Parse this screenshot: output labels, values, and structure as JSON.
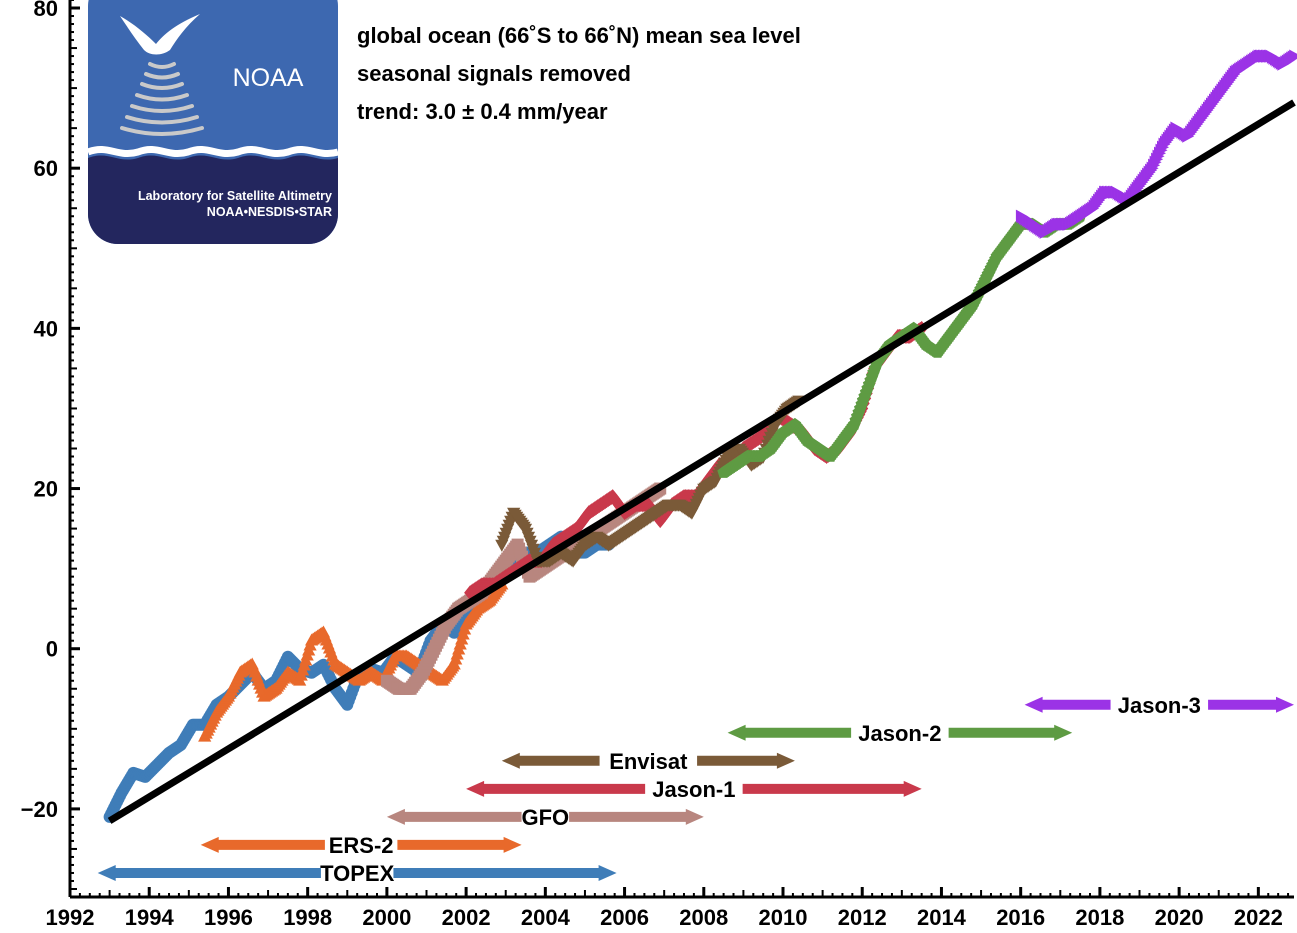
{
  "chart_data": {
    "type": "scatter",
    "title_lines": [
      "global ocean (66˚S to 66˚N) mean sea level",
      "seasonal signals removed",
      "trend:  3.0 ± 0.4 mm/year"
    ],
    "xlabel": "",
    "ylabel": "",
    "xlim": [
      1992,
      2022.9
    ],
    "ylim": [
      -31,
      81
    ],
    "x_ticks": [
      1992,
      1994,
      1996,
      1998,
      2000,
      2002,
      2004,
      2006,
      2008,
      2010,
      2012,
      2014,
      2016,
      2018,
      2020,
      2022
    ],
    "y_ticks": [
      -20,
      0,
      20,
      40,
      60,
      80
    ],
    "y_tick_labels": [
      "−20",
      "0",
      "20",
      "40",
      "60",
      "80"
    ],
    "grid": false,
    "trend_line": {
      "slope_mm_per_year": 3.0,
      "x": [
        1993.0,
        2022.9
      ],
      "y": [
        -21.5,
        68.2
      ],
      "color": "#000000"
    },
    "series": [
      {
        "name": "TOPEX",
        "marker": "circle",
        "color": "#3f7db8",
        "x": [
          1993.0,
          1993.3,
          1993.6,
          1993.9,
          1994.2,
          1994.5,
          1994.8,
          1995.1,
          1995.4,
          1995.7,
          1996.0,
          1996.3,
          1996.6,
          1996.9,
          1997.2,
          1997.5,
          1997.8,
          1998.1,
          1998.4,
          1998.7,
          1999.0,
          1999.3,
          1999.6,
          1999.9,
          2000.2,
          2000.5,
          2000.8,
          2001.1,
          2001.4,
          2001.7,
          2002.0,
          2002.3,
          2002.6,
          2002.9,
          2003.2,
          2003.5,
          2003.8,
          2004.1,
          2004.4,
          2004.7,
          2005.0,
          2005.3,
          2005.6
        ],
        "y": [
          -21,
          -18,
          -15.5,
          -16,
          -14.5,
          -13,
          -12,
          -9.5,
          -9.5,
          -7,
          -6,
          -4.5,
          -3,
          -5,
          -4,
          -1,
          -2.5,
          -3,
          -2,
          -5,
          -7,
          -3,
          -2.5,
          -3,
          -1,
          -2,
          -3,
          1,
          3,
          2,
          4,
          6,
          8,
          9,
          11,
          12,
          12,
          13,
          14,
          12,
          12,
          13,
          13
        ]
      },
      {
        "name": "ERS-2",
        "marker": "triangle-up",
        "color": "#e8692b",
        "x": [
          1995.4,
          1995.7,
          1996.0,
          1996.3,
          1996.6,
          1996.9,
          1997.2,
          1997.5,
          1997.8,
          1998.1,
          1998.4,
          1998.7,
          1999.0,
          1999.3,
          1999.6,
          1999.9,
          2000.2,
          2000.5,
          2000.8,
          2001.1,
          2001.4,
          2001.7,
          2002.0,
          2002.3,
          2002.6,
          2002.9
        ],
        "y": [
          -11,
          -8,
          -6,
          -3,
          -2,
          -6,
          -5,
          -3,
          -4,
          1,
          2,
          -2,
          -3,
          -4,
          -3,
          -4,
          -1,
          -1,
          -2,
          -3,
          -4,
          -2,
          3,
          5,
          6,
          8
        ]
      },
      {
        "name": "GFO",
        "marker": "square",
        "color": "#b8867f",
        "x": [
          2000.0,
          2000.3,
          2000.6,
          2000.9,
          2001.2,
          2001.5,
          2001.8,
          2002.1,
          2002.4,
          2002.7,
          2003.0,
          2003.3,
          2003.6,
          2003.9,
          2004.2,
          2004.5,
          2004.8,
          2005.1,
          2005.4,
          2005.7,
          2006.0,
          2006.3,
          2006.6,
          2006.9
        ],
        "y": [
          -4,
          -5,
          -5,
          -3,
          0,
          3,
          5,
          6,
          7,
          9,
          11,
          13,
          9,
          10,
          11,
          12,
          13,
          14,
          15,
          16,
          17,
          18,
          19,
          20
        ]
      },
      {
        "name": "Jason-1",
        "marker": "diamond",
        "color": "#c9394b",
        "x": [
          2002.1,
          2002.4,
          2002.7,
          2003.0,
          2003.3,
          2003.6,
          2003.9,
          2004.2,
          2004.5,
          2004.8,
          2005.1,
          2005.4,
          2005.7,
          2006.0,
          2006.3,
          2006.6,
          2006.9,
          2007.2,
          2007.5,
          2007.8,
          2008.1,
          2008.4,
          2008.7,
          2009.0,
          2009.3,
          2009.6,
          2009.9,
          2010.2,
          2010.5,
          2010.8,
          2011.1,
          2011.4,
          2011.7,
          2012.0,
          2012.3,
          2012.6,
          2012.9,
          2013.2,
          2013.5
        ],
        "y": [
          7,
          8,
          8,
          9,
          10,
          11,
          11,
          13,
          14,
          15,
          17,
          18,
          19,
          17,
          18,
          18,
          16,
          18,
          19,
          19,
          21,
          23,
          23,
          25,
          26,
          27,
          29,
          28,
          27,
          25,
          24,
          25,
          27,
          30,
          35,
          37,
          39,
          39,
          40
        ]
      },
      {
        "name": "Envisat",
        "marker": "triangle-down",
        "color": "#7a5a38",
        "x": [
          2002.9,
          2003.2,
          2003.5,
          2003.8,
          2004.1,
          2004.4,
          2004.7,
          2005.0,
          2005.3,
          2005.6,
          2005.9,
          2006.2,
          2006.5,
          2006.8,
          2007.1,
          2007.4,
          2007.7,
          2008.0,
          2008.3,
          2008.6,
          2008.9,
          2009.2,
          2009.5,
          2009.8,
          2010.1,
          2010.4
        ],
        "y": [
          13,
          17,
          15,
          11,
          11,
          12,
          11,
          13,
          14,
          13,
          14,
          15,
          16,
          17,
          18,
          18,
          17,
          20,
          21,
          24,
          25,
          23,
          24,
          28,
          30,
          31
        ]
      },
      {
        "name": "Jason-2",
        "marker": "pentagon",
        "color": "#5e9b43",
        "x": [
          2008.5,
          2008.8,
          2009.1,
          2009.4,
          2009.7,
          2010.0,
          2010.3,
          2010.6,
          2010.9,
          2011.2,
          2011.5,
          2011.8,
          2012.1,
          2012.4,
          2012.7,
          2013.0,
          2013.3,
          2013.6,
          2013.9,
          2014.2,
          2014.5,
          2014.8,
          2015.1,
          2015.4,
          2015.7,
          2016.0,
          2016.3,
          2016.6,
          2016.9,
          2017.2,
          2017.5
        ],
        "y": [
          22,
          23,
          24,
          24,
          25,
          27,
          28,
          26,
          25,
          24,
          26,
          28,
          32,
          36,
          38,
          39,
          40,
          38,
          37,
          39,
          41,
          43,
          46,
          49,
          51,
          53,
          53,
          52,
          53,
          53,
          54
        ]
      },
      {
        "name": "Jason-3",
        "marker": "triangle-right",
        "color": "#9b33e6",
        "x": [
          2016.0,
          2016.3,
          2016.6,
          2016.9,
          2017.2,
          2017.5,
          2017.8,
          2018.1,
          2018.4,
          2018.7,
          2019.0,
          2019.3,
          2019.6,
          2019.9,
          2020.2,
          2020.5,
          2020.8,
          2021.1,
          2021.4,
          2021.7,
          2022.0,
          2022.3,
          2022.6,
          2022.9
        ],
        "y": [
          54,
          53,
          52,
          53,
          53,
          54,
          55,
          57,
          57,
          56,
          58,
          60,
          63,
          65,
          64,
          66,
          68,
          70,
          72,
          73,
          74,
          74,
          73,
          74
        ]
      }
    ],
    "missions": [
      {
        "name": "TOPEX",
        "start": 1992.7,
        "end": 2005.8,
        "y": -28,
        "color": "#3f7db8"
      },
      {
        "name": "ERS-2",
        "start": 1995.3,
        "end": 2003.4,
        "y": -24.5,
        "color": "#e8692b"
      },
      {
        "name": "GFO",
        "start": 2000.0,
        "end": 2008.0,
        "y": -21,
        "color": "#b8867f"
      },
      {
        "name": "Jason-1",
        "start": 2002.0,
        "end": 2013.5,
        "y": -17.5,
        "color": "#c9394b"
      },
      {
        "name": "Envisat",
        "start": 2002.9,
        "end": 2010.3,
        "y": -14,
        "color": "#7a5a38"
      },
      {
        "name": "Jason-2",
        "start": 2008.6,
        "end": 2017.3,
        "y": -10.5,
        "color": "#5e9b43"
      },
      {
        "name": "Jason-3",
        "start": 2016.1,
        "end": 2022.9,
        "y": -7,
        "color": "#9b33e6"
      }
    ]
  },
  "logo": {
    "wordmark": "NOAA",
    "line1": "Laboratory for Satellite Altimetry",
    "line2": "NOAA•NESDIS•STAR",
    "bg_top": "#3d68b0",
    "bg_bottom": "#23265e"
  }
}
